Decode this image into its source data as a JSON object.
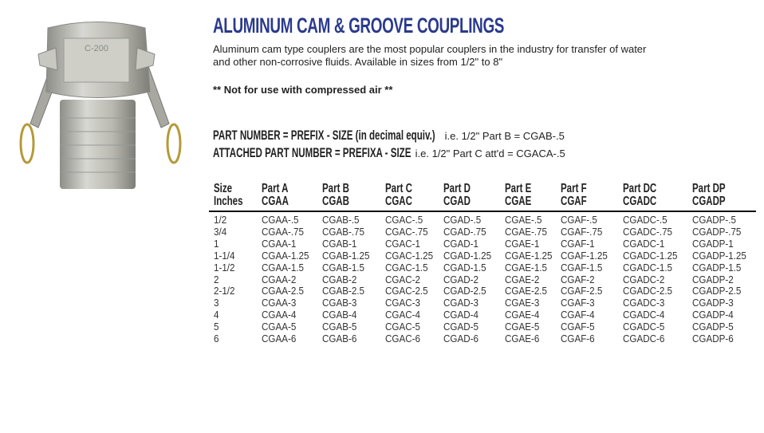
{
  "product_image": {
    "alt": "Aluminum cam coupler Part C",
    "stamp": "C-200"
  },
  "title": "ALUMINUM CAM & GROOVE COUPLINGS",
  "title_color": "#2a3a8c",
  "description": "Aluminum cam type couplers are the most popular couplers in the industry for transfer of water and other non-corrosive fluids.  Available in sizes from 1/2\" to 8\"",
  "warning": "** Not for use with compressed air **",
  "part_number": {
    "label": "PART NUMBER = PREFIX - SIZE (in decimal equiv.)",
    "example": " i.e. 1/2\" Part B = CGAB-.5"
  },
  "attached_part_number": {
    "label": "ATTACHED PART NUMBER = PREFIXA - SIZE",
    "example": "  i.e. 1/2\" Part C att'd = CGACA-.5"
  },
  "table": {
    "headers": [
      {
        "line1": "Size",
        "line2": "Inches"
      },
      {
        "line1": "Part A",
        "line2": "CGAA"
      },
      {
        "line1": "Part B",
        "line2": "CGAB"
      },
      {
        "line1": "Part C",
        "line2": "CGAC"
      },
      {
        "line1": "Part D",
        "line2": "CGAD"
      },
      {
        "line1": "Part E",
        "line2": "CGAE"
      },
      {
        "line1": "Part F",
        "line2": "CGAF"
      },
      {
        "line1": "Part DC",
        "line2": "CGADC"
      },
      {
        "line1": "Part DP",
        "line2": "CGADP"
      }
    ],
    "rows": [
      [
        "1/2",
        "CGAA-.5",
        "CGAB-.5",
        "CGAC-.5",
        "CGAD-.5",
        "CGAE-.5",
        "CGAF-.5",
        "CGADC-.5",
        "CGADP-.5"
      ],
      [
        "3/4",
        "CGAA-.75",
        "CGAB-.75",
        "CGAC-.75",
        "CGAD-.75",
        "CGAE-.75",
        "CGAF-.75",
        "CGADC-.75",
        "CGADP-.75"
      ],
      [
        "1",
        "CGAA-1",
        "CGAB-1",
        "CGAC-1",
        "CGAD-1",
        "CGAE-1",
        "CGAF-1",
        "CGADC-1",
        "CGADP-1"
      ],
      [
        "1-1/4",
        "CGAA-1.25",
        "CGAB-1.25",
        "CGAC-1.25",
        "CGAD-1.25",
        "CGAE-1.25",
        "CGAF-1.25",
        "CGADC-1.25",
        "CGADP-1.25"
      ],
      [
        "1-1/2",
        "CGAA-1.5",
        "CGAB-1.5",
        "CGAC-1.5",
        "CGAD-1.5",
        "CGAE-1.5",
        "CGAF-1.5",
        "CGADC-1.5",
        "CGADP-1.5"
      ],
      [
        "2",
        "CGAA-2",
        "CGAB-2",
        "CGAC-2",
        "CGAD-2",
        "CGAE-2",
        "CGAF-2",
        "CGADC-2",
        "CGADP-2"
      ],
      [
        "2-1/2",
        "CGAA-2.5",
        "CGAB-2.5",
        "CGAC-2.5",
        "CGAD-2.5",
        "CGAE-2.5",
        "CGAF-2.5",
        "CGADC-2.5",
        "CGADP-2.5"
      ],
      [
        "3",
        "CGAA-3",
        "CGAB-3",
        "CGAC-3",
        "CGAD-3",
        "CGAE-3",
        "CGAF-3",
        "CGADC-3",
        "CGADP-3"
      ],
      [
        "4",
        "CGAA-4",
        "CGAB-4",
        "CGAC-4",
        "CGAD-4",
        "CGAE-4",
        "CGAF-4",
        "CGADC-4",
        "CGADP-4"
      ],
      [
        "5",
        "CGAA-5",
        "CGAB-5",
        "CGAC-5",
        "CGAD-5",
        "CGAE-5",
        "CGAF-5",
        "CGADC-5",
        "CGADP-5"
      ],
      [
        "6",
        "CGAA-6",
        "CGAB-6",
        "CGAC-6",
        "CGAD-6",
        "CGAE-6",
        "CGAF-6",
        "CGADC-6",
        "CGADP-6"
      ]
    ]
  }
}
